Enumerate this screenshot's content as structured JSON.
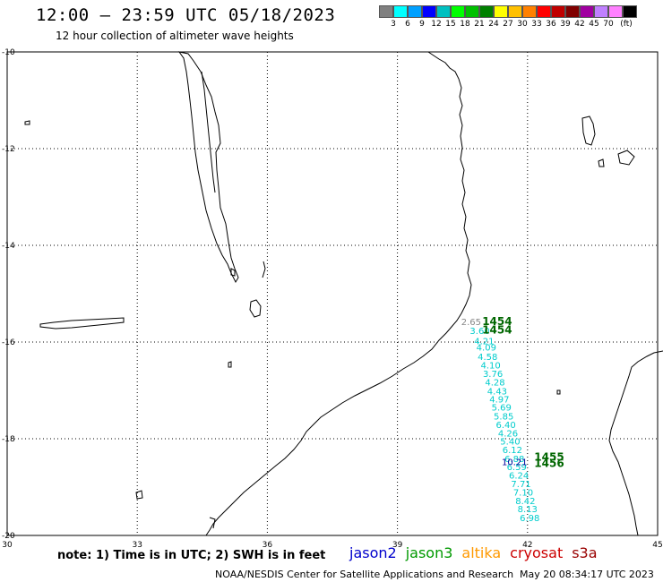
{
  "header": {
    "title": "12:00 – 23:59 UTC 05/18/2023",
    "subtitle": "12 hour collection of altimeter wave heights"
  },
  "colorbar": {
    "colors": [
      "#808080",
      "#00ffff",
      "#00a0ff",
      "#0000ff",
      "#00c0c0",
      "#00ff00",
      "#00c000",
      "#008000",
      "#ffff00",
      "#ffc000",
      "#ff8000",
      "#ff0000",
      "#c00000",
      "#800000",
      "#a000a0",
      "#c080ff",
      "#ff80ff",
      "#000000"
    ],
    "labels": [
      "3",
      "6",
      "9",
      "12",
      "15",
      "18",
      "21",
      "24",
      "27",
      "30",
      "33",
      "36",
      "39",
      "42",
      "45",
      "70",
      "(ft)"
    ]
  },
  "map": {
    "lon_ticks": [
      "30",
      "33",
      "36",
      "39",
      "42",
      "45"
    ],
    "lat_ticks": [
      "-10",
      "-12",
      "-14",
      "-16",
      "-18",
      "-20"
    ]
  },
  "chart_data": {
    "type": "scatter",
    "xlim": [
      30,
      45
    ],
    "ylim": [
      -20,
      -10
    ],
    "xlabel": "",
    "ylabel": "",
    "grid": true,
    "series": [
      {
        "name": "jason3",
        "color": "#00cccc",
        "points": [
          {
            "lon": 40.9,
            "lat": -15.83,
            "label": "3.60"
          },
          {
            "lon": 41.0,
            "lat": -16.05,
            "label": "4.21"
          },
          {
            "lon": 41.05,
            "lat": -16.18,
            "label": "4.09"
          },
          {
            "lon": 41.08,
            "lat": -16.37,
            "label": "4.58"
          },
          {
            "lon": 41.15,
            "lat": -16.55,
            "label": "4.10"
          },
          {
            "lon": 41.2,
            "lat": -16.72,
            "label": "3.76"
          },
          {
            "lon": 41.25,
            "lat": -16.9,
            "label": "4.28"
          },
          {
            "lon": 41.3,
            "lat": -17.08,
            "label": "4.43"
          },
          {
            "lon": 41.35,
            "lat": -17.25,
            "label": "4.97"
          },
          {
            "lon": 41.4,
            "lat": -17.42,
            "label": "5.69"
          },
          {
            "lon": 41.45,
            "lat": -17.6,
            "label": "5.85"
          },
          {
            "lon": 41.5,
            "lat": -17.78,
            "label": "6.40"
          },
          {
            "lon": 41.55,
            "lat": -17.95,
            "label": "4.26"
          },
          {
            "lon": 41.6,
            "lat": -18.12,
            "label": "5.40"
          },
          {
            "lon": 41.65,
            "lat": -18.3,
            "label": "6.12"
          },
          {
            "lon": 41.7,
            "lat": -18.48,
            "label": "6.88"
          },
          {
            "lon": 41.75,
            "lat": -18.65,
            "label": "6.59"
          },
          {
            "lon": 41.8,
            "lat": -18.82,
            "label": "6.24"
          },
          {
            "lon": 41.85,
            "lat": -19.0,
            "label": "7.71"
          },
          {
            "lon": 41.9,
            "lat": -19.18,
            "label": "7.10"
          },
          {
            "lon": 41.95,
            "lat": -19.35,
            "label": "8.42"
          },
          {
            "lon": 42.0,
            "lat": -19.52,
            "label": "8.13"
          },
          {
            "lon": 42.05,
            "lat": -19.7,
            "label": "6.98"
          }
        ]
      },
      {
        "name": "jason2",
        "color": "#000099",
        "points": [
          {
            "lon": 41.7,
            "lat": -18.55,
            "label": "10.21"
          }
        ]
      },
      {
        "name": "",
        "color": "#888888",
        "points": [
          {
            "lon": 40.7,
            "lat": -15.65,
            "label": "2.65"
          }
        ]
      },
      {
        "name": "",
        "color": "#006600",
        "points": [
          {
            "lon": 41.3,
            "lat": -15.65,
            "label": "1454"
          },
          {
            "lon": 41.3,
            "lat": -15.82,
            "label": "1454"
          },
          {
            "lon": 42.5,
            "lat": -18.45,
            "label": "1455"
          },
          {
            "lon": 42.5,
            "lat": -18.58,
            "label": "1456"
          }
        ]
      }
    ]
  },
  "note": "note:  1) Time is in UTC;  2) SWH is in feet",
  "satellites": [
    {
      "name": "jason2",
      "color": "#0000cc"
    },
    {
      "name": "jason3",
      "color": "#009900"
    },
    {
      "name": "altika",
      "color": "#ff9900"
    },
    {
      "name": "cryosat",
      "color": "#cc0000"
    },
    {
      "name": "s3a",
      "color": "#990000"
    }
  ],
  "footer": {
    "credit": "NOAA/NESDIS Center for Satellite Applications and Research",
    "timestamp": "May 20 08:34:17 UTC 2023"
  }
}
